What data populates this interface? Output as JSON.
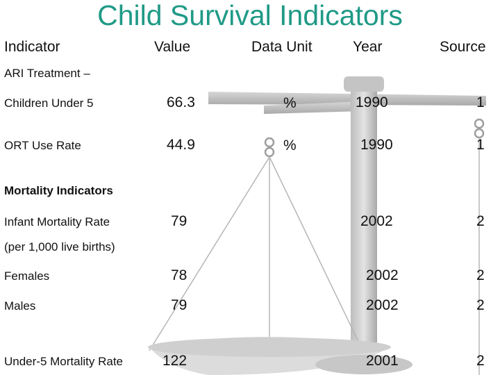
{
  "title": "Child Survival Indicators",
  "headers": {
    "indicator": "Indicator",
    "value": "Value",
    "data_unit": "Data Unit",
    "year": "Year",
    "source": "Source"
  },
  "sections": {
    "ari_treatment": "ARI Treatment –",
    "mortality_indicators": "Mortality Indicators",
    "per_1000": "(per 1,000 live births)"
  },
  "rows": [
    {
      "label": "Children Under 5",
      "value": "66.3",
      "unit": "%",
      "year": "1990",
      "source": "1"
    },
    {
      "label": "ORT Use Rate",
      "value": "44.9",
      "unit": "%",
      "year": "1990",
      "source": "1"
    },
    {
      "label": "Infant Mortality Rate",
      "value": "79",
      "unit": "",
      "year": "2002",
      "source": "2"
    },
    {
      "label": "Females",
      "value": "78",
      "unit": "",
      "year": "2002",
      "source": "2"
    },
    {
      "label": "Males",
      "value": "79",
      "unit": "",
      "year": "2002",
      "source": "2"
    },
    {
      "label": "Under-5 Mortality Rate",
      "value": "122",
      "unit": "",
      "year": "2001",
      "source": "2"
    }
  ],
  "colors": {
    "title": "#1f9a86",
    "scale_art": "#c8c8c8"
  }
}
